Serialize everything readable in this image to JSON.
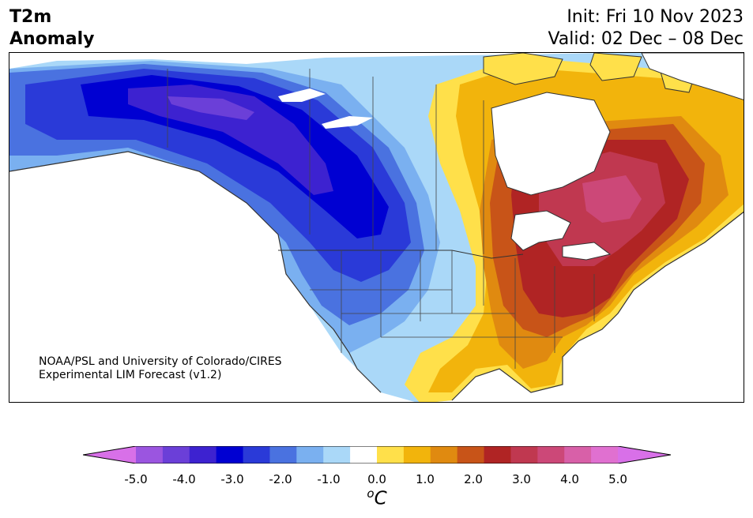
{
  "header": {
    "title_line1": "T2m",
    "title_line2": "Anomaly",
    "init_text": "Init: Fri 10 Nov 2023",
    "valid_text": "Valid: 02 Dec – 08 Dec"
  },
  "credit": {
    "line1": "NOAA/PSL and University of Colorado/CIRES",
    "line2": "Experimental LIM Forecast (v1.2)"
  },
  "colorbar": {
    "levels": [
      -5.0,
      -4.5,
      -4.0,
      -3.5,
      -3.0,
      -2.5,
      -2.0,
      -1.5,
      -1.0,
      -0.5,
      0.5,
      1.0,
      1.5,
      2.0,
      2.5,
      3.0,
      3.5,
      4.0,
      4.5,
      5.0
    ],
    "colors": [
      "#d870e8",
      "#9b55e0",
      "#6b3fd8",
      "#3d22d0",
      "#0000d2",
      "#2a3ad8",
      "#4a72e0",
      "#7ab0f0",
      "#aad8f8",
      "#ffffff",
      "#ffe04a",
      "#f2b40c",
      "#e08a10",
      "#c85418",
      "#b02424",
      "#c03850",
      "#cc4878",
      "#d860a8",
      "#e070d0",
      "#d870e8"
    ],
    "tick_labels": [
      "-5.0",
      "-4.0",
      "-3.0",
      "-2.0",
      "-1.0",
      "0.0",
      "1.0",
      "2.0",
      "3.0",
      "4.0",
      "5.0"
    ],
    "unit_base": "o",
    "unit_letter": "C"
  }
}
